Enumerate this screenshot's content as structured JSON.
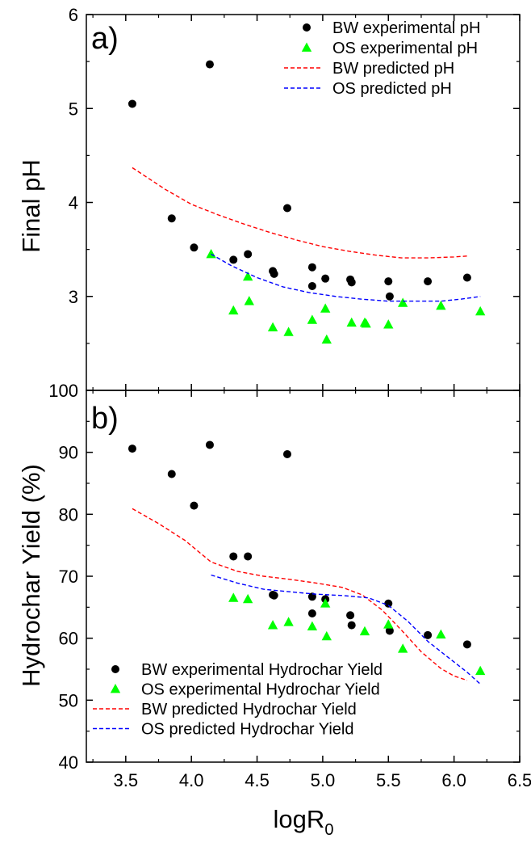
{
  "chart_data": [
    {
      "type": "scatter",
      "panel_label": "a)",
      "ylabel": "Final pH",
      "xlim": [
        3.2,
        6.5
      ],
      "ylim": [
        2,
        6
      ],
      "yticks": [
        "3",
        "4",
        "5",
        "6"
      ],
      "legend_position": "top-right",
      "series": [
        {
          "name": "BW experimental pH",
          "kind": "points",
          "marker": "circle",
          "color": "#000000",
          "points": [
            [
              3.55,
              5.05
            ],
            [
              3.85,
              3.83
            ],
            [
              4.02,
              3.52
            ],
            [
              4.14,
              5.47
            ],
            [
              4.32,
              3.39
            ],
            [
              4.43,
              3.45
            ],
            [
              4.62,
              3.27
            ],
            [
              4.63,
              3.24
            ],
            [
              4.73,
              3.94
            ],
            [
              4.92,
              3.31
            ],
            [
              4.92,
              3.11
            ],
            [
              5.02,
              3.19
            ],
            [
              5.21,
              3.18
            ],
            [
              5.22,
              3.15
            ],
            [
              5.5,
              3.16
            ],
            [
              5.51,
              3.0
            ],
            [
              5.8,
              3.16
            ],
            [
              6.1,
              3.2
            ]
          ]
        },
        {
          "name": "OS experimental pH",
          "kind": "points",
          "marker": "triangle",
          "color": "#00ff00",
          "points": [
            [
              4.15,
              3.45
            ],
            [
              4.32,
              2.85
            ],
            [
              4.43,
              3.21
            ],
            [
              4.44,
              2.95
            ],
            [
              4.62,
              2.67
            ],
            [
              4.74,
              2.62
            ],
            [
              4.92,
              2.75
            ],
            [
              5.02,
              2.87
            ],
            [
              5.03,
              2.54
            ],
            [
              5.22,
              2.72
            ],
            [
              5.32,
              2.72
            ],
            [
              5.33,
              2.71
            ],
            [
              5.5,
              2.7
            ],
            [
              5.61,
              2.93
            ],
            [
              5.9,
              2.9
            ],
            [
              6.2,
              2.84
            ]
          ]
        },
        {
          "name": "BW predicted pH",
          "kind": "line",
          "dash": true,
          "color": "#ff0000",
          "points": [
            [
              3.55,
              4.37
            ],
            [
              3.8,
              4.14
            ],
            [
              4.0,
              3.98
            ],
            [
              4.2,
              3.87
            ],
            [
              4.4,
              3.77
            ],
            [
              4.6,
              3.68
            ],
            [
              4.8,
              3.6
            ],
            [
              5.0,
              3.53
            ],
            [
              5.2,
              3.48
            ],
            [
              5.4,
              3.44
            ],
            [
              5.6,
              3.41
            ],
            [
              5.8,
              3.41
            ],
            [
              6.0,
              3.42
            ],
            [
              6.1,
              3.43
            ]
          ]
        },
        {
          "name": "OS predicted pH",
          "kind": "line",
          "dash": true,
          "color": "#0000ff",
          "points": [
            [
              4.15,
              3.45
            ],
            [
              4.3,
              3.33
            ],
            [
              4.5,
              3.2
            ],
            [
              4.7,
              3.1
            ],
            [
              4.9,
              3.04
            ],
            [
              5.1,
              3.0
            ],
            [
              5.3,
              2.97
            ],
            [
              5.5,
              2.95
            ],
            [
              5.7,
              2.95
            ],
            [
              5.9,
              2.95
            ],
            [
              6.05,
              2.97
            ],
            [
              6.2,
              3.0
            ]
          ]
        }
      ]
    },
    {
      "type": "scatter",
      "panel_label": "b)",
      "ylabel": "Hydrochar Yield (%)",
      "xlabel": "logR",
      "xlabel_sub": "0",
      "xlim": [
        3.2,
        6.5
      ],
      "ylim": [
        40,
        100
      ],
      "xticks": [
        "3.5",
        "4.0",
        "4.5",
        "5.0",
        "5.5",
        "6.0",
        "6.5"
      ],
      "yticks": [
        "40",
        "50",
        "60",
        "70",
        "80",
        "90",
        "100"
      ],
      "legend_position": "bottom-left",
      "series": [
        {
          "name": "BW experimental Hydrochar Yield",
          "kind": "points",
          "marker": "circle",
          "color": "#000000",
          "points": [
            [
              3.55,
              90.6
            ],
            [
              3.85,
              86.5
            ],
            [
              4.02,
              81.4
            ],
            [
              4.14,
              91.2
            ],
            [
              4.32,
              73.2
            ],
            [
              4.43,
              73.2
            ],
            [
              4.62,
              67.0
            ],
            [
              4.63,
              66.9
            ],
            [
              4.73,
              89.7
            ],
            [
              4.92,
              66.7
            ],
            [
              4.92,
              64.0
            ],
            [
              5.02,
              66.3
            ],
            [
              5.21,
              63.7
            ],
            [
              5.22,
              62.1
            ],
            [
              5.5,
              65.6
            ],
            [
              5.51,
              61.2
            ],
            [
              5.8,
              60.5
            ],
            [
              6.1,
              59.0
            ]
          ]
        },
        {
          "name": "OS experimental Hydrochar Yield",
          "kind": "points",
          "marker": "triangle",
          "color": "#00ff00",
          "points": [
            [
              4.32,
              66.5
            ],
            [
              4.43,
              66.3
            ],
            [
              4.62,
              62.1
            ],
            [
              4.74,
              62.6
            ],
            [
              4.92,
              61.9
            ],
            [
              5.02,
              65.6
            ],
            [
              5.03,
              60.3
            ],
            [
              5.32,
              61.1
            ],
            [
              5.5,
              62.2
            ],
            [
              5.61,
              58.3
            ],
            [
              5.9,
              60.6
            ],
            [
              6.2,
              54.7
            ]
          ]
        },
        {
          "name": "BW predicted Hydrochar Yield",
          "kind": "line",
          "dash": true,
          "color": "#ff0000",
          "points": [
            [
              3.55,
              80.9
            ],
            [
              3.75,
              78.5
            ],
            [
              3.95,
              75.8
            ],
            [
              4.15,
              72.3
            ],
            [
              4.35,
              70.8
            ],
            [
              4.55,
              70.0
            ],
            [
              4.75,
              69.5
            ],
            [
              4.95,
              68.9
            ],
            [
              5.15,
              68.2
            ],
            [
              5.3,
              67.0
            ],
            [
              5.45,
              64.6
            ],
            [
              5.6,
              61.3
            ],
            [
              5.75,
              57.8
            ],
            [
              5.9,
              55.1
            ],
            [
              6.0,
              53.9
            ],
            [
              6.1,
              53.2
            ]
          ]
        },
        {
          "name": "OS predicted Hydrochar Yield",
          "kind": "line",
          "dash": true,
          "color": "#0000ff",
          "points": [
            [
              4.15,
              70.2
            ],
            [
              4.35,
              68.9
            ],
            [
              4.55,
              67.9
            ],
            [
              4.75,
              67.5
            ],
            [
              4.95,
              67.1
            ],
            [
              5.15,
              66.9
            ],
            [
              5.35,
              66.5
            ],
            [
              5.5,
              65.3
            ],
            [
              5.65,
              62.7
            ],
            [
              5.8,
              59.5
            ],
            [
              5.95,
              57.0
            ],
            [
              6.1,
              54.5
            ],
            [
              6.2,
              52.6
            ]
          ]
        }
      ]
    }
  ]
}
